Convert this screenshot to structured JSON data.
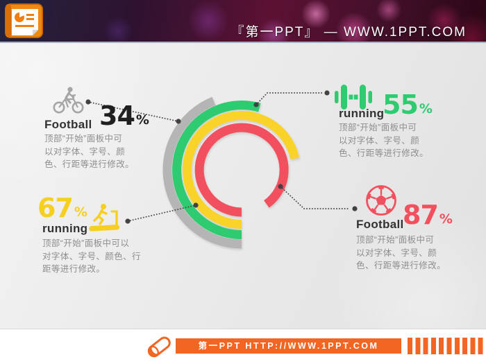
{
  "header": {
    "title": "『第一PPT』 — WWW.1PPT.COM",
    "logo": "powerpoint-document-icon"
  },
  "chart_data": {
    "type": "radial_progress_rings",
    "unit": "%",
    "start_position": "bottom",
    "direction": "clockwise",
    "legend_position": "four corner callouts",
    "series": [
      {
        "name": "Football (cycling)",
        "value": 34,
        "ring": 1,
        "color": "#b5b5b5",
        "sweep_deg": 158
      },
      {
        "name": "running (dumbbell)",
        "value": 55,
        "ring": 2,
        "color": "#2ecb71",
        "sweep_deg": 196
      },
      {
        "name": "running (treadmill)",
        "value": 67,
        "ring": 3,
        "color": "#f9d32c",
        "sweep_deg": 258
      },
      {
        "name": "Football (soccer)",
        "value": 87,
        "ring": 4,
        "color": "#f2505f",
        "sweep_deg": 324
      }
    ]
  },
  "callouts": {
    "top_left": {
      "icon": "bicycle-icon",
      "label": "Football",
      "value": "34",
      "unit": "%",
      "value_color": "#1f1f1f",
      "icon_color": "#a5a5a5",
      "desc_lines": [
        "顶部“开始”面板中可",
        "以对字体、字号、颜",
        "色、行距等进行修改。"
      ]
    },
    "top_right": {
      "icon": "dumbbell-icon",
      "label": "running",
      "value": "55",
      "unit": "%",
      "value_color": "#2ecb71",
      "icon_color": "#2ecb71",
      "desc_lines": [
        "顶部“开始”面板中可",
        "以对字体、字号、颜",
        "色、行距等进行修改。"
      ]
    },
    "bottom_left": {
      "icon": "treadmill-icon",
      "label": "running",
      "value": "67",
      "unit": "%",
      "value_color": "#f6cf20",
      "icon_color": "#f6cf20",
      "desc_lines": [
        "顶部“开始”面板中可以",
        "对字体、字号、颜色、行",
        "距等进行修改。"
      ]
    },
    "bottom_right": {
      "icon": "soccer-ball-icon",
      "label": "Football",
      "value": "87",
      "unit": "%",
      "value_color": "#f2505f",
      "icon_color": "#f2505f",
      "desc_lines": [
        "顶部“开始”面板中可",
        "以对字体、字号、颜",
        "色、行距等进行修改。"
      ]
    }
  },
  "footer": {
    "text": "第一PPT HTTP://WWW.1PPT.COM",
    "icon": "pill-icon",
    "accent_color": "#f26522"
  }
}
